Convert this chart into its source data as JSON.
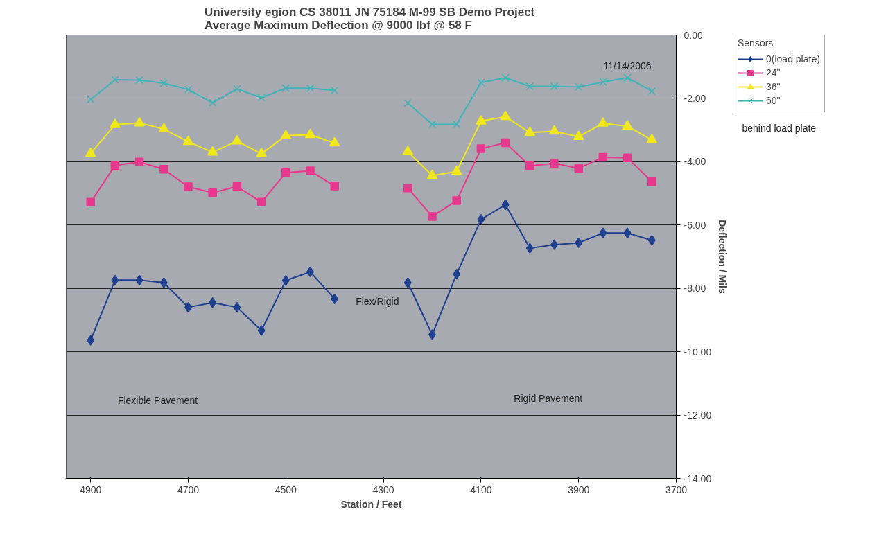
{
  "chart_data": {
    "type": "line",
    "title": "University egion CS 38011 JN 75184  M-99 SB Demo Project\nAverage Maximum Deflection @ 9000 lbf @ 58 F",
    "xlabel": "Station / Feet",
    "ylabel": "Deflection / Mils",
    "legend_title": "Sensors",
    "x": [
      4900,
      4850,
      4800,
      4750,
      4700,
      4650,
      4600,
      4550,
      4500,
      4450,
      4400,
      4350,
      4300,
      4250,
      4200,
      4150,
      4100,
      4050,
      4000,
      3950,
      3900,
      3850,
      3800,
      3750
    ],
    "series": [
      {
        "name": "0(load plate)",
        "color": "#1f3f8f",
        "marker": "diamond",
        "values": [
          -9.64,
          -7.74,
          -7.74,
          -7.82,
          -8.6,
          -8.45,
          -8.6,
          -9.33,
          -7.75,
          -7.48,
          -8.33,
          null,
          null,
          -7.82,
          -9.46,
          -7.55,
          -5.82,
          -5.36,
          -6.73,
          -6.62,
          -6.56,
          -6.25,
          -6.25,
          -6.48
        ]
      },
      {
        "name": "24\"",
        "color": "#e6388c",
        "marker": "square",
        "values": [
          -5.28,
          -4.12,
          -4.01,
          -4.24,
          -4.79,
          -4.98,
          -4.78,
          -5.28,
          -4.35,
          -4.29,
          -4.77,
          null,
          null,
          -4.83,
          -5.73,
          -5.23,
          -3.59,
          -3.4,
          -4.13,
          -4.05,
          -4.21,
          -3.86,
          -3.88,
          -4.63
        ]
      },
      {
        "name": "36\"",
        "color": "#f0e81c",
        "marker": "triangle",
        "values": [
          -3.74,
          -2.83,
          -2.78,
          -2.97,
          -3.37,
          -3.7,
          -3.35,
          -3.75,
          -3.18,
          -3.15,
          -3.41,
          null,
          null,
          -3.68,
          -4.44,
          -4.31,
          -2.72,
          -2.58,
          -3.08,
          -3.04,
          -3.21,
          -2.79,
          -2.88,
          -3.31
        ]
      },
      {
        "name": "60\"",
        "color": "#3fb3b8",
        "marker": "cross",
        "values": [
          -2.04,
          -1.41,
          -1.42,
          -1.52,
          -1.72,
          -2.14,
          -1.7,
          -1.98,
          -1.68,
          -1.68,
          -1.75,
          null,
          null,
          -2.15,
          -2.82,
          -2.82,
          -1.5,
          -1.35,
          -1.62,
          -1.62,
          -1.64,
          -1.48,
          -1.35,
          -1.77
        ]
      }
    ],
    "xlim": [
      4950,
      3700
    ],
    "xticks": [
      4900,
      4700,
      4500,
      4300,
      4100,
      3900,
      3700
    ],
    "ylim": [
      -14,
      0
    ],
    "yticks": [
      {
        "value": 0,
        "label": "0.00"
      },
      {
        "value": -2,
        "label": "-2.00"
      },
      {
        "value": -4,
        "label": "-4.00"
      },
      {
        "value": -6,
        "label": "-6.00"
      },
      {
        "value": -8,
        "label": "-8.00"
      },
      {
        "value": -10,
        "label": "-10.00"
      },
      {
        "value": -12,
        "label": "-12.00"
      },
      {
        "value": -14,
        "label": "-14.00"
      }
    ],
    "grid": "y",
    "legend": "right",
    "line_style": "solid",
    "annotations": [
      "11/14/2006",
      "Flex/Rigid",
      "Flexible Pavement",
      "Rigid Pavement",
      "behind load plate"
    ]
  }
}
